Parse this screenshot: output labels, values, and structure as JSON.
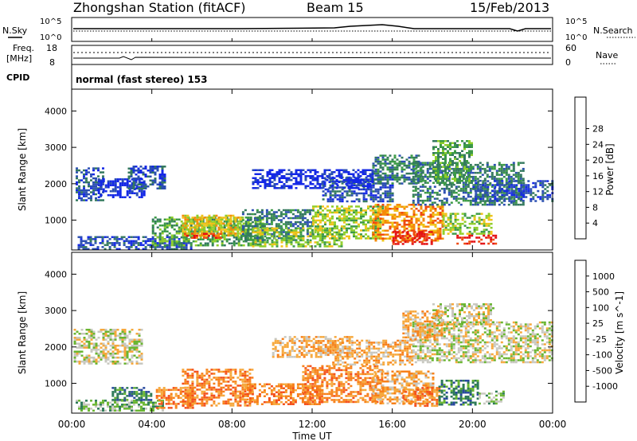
{
  "header": {
    "station": "Zhongshan Station (fitACF)",
    "beam": "Beam 15",
    "date": "15/Feb/2013"
  },
  "status_panels": {
    "nsky_label": "N.Sky",
    "nsearch_label": "N.Search",
    "scale_top": "10^5",
    "scale_bottom": "10^0",
    "freq_label_line1": "Freq.",
    "freq_label_line2": "[MHz]",
    "freq_ticks": [
      "18",
      "8"
    ],
    "nave_label": "Nave",
    "nave_ticks": [
      "60",
      "0"
    ],
    "cpid_label": "CPID",
    "cpid_text": "normal (fast stereo) 153"
  },
  "colors": {
    "power": [
      "#1428e6",
      "#2b4fb2",
      "#34795e",
      "#3c9a46",
      "#8fce2a",
      "#f0c319",
      "#f58a0a",
      "#ee4a10",
      "#e30f12"
    ],
    "velocity": [
      "#e81010",
      "#f4501c",
      "#f7801a",
      "#f6a83c",
      "#c8c8c0",
      "#6ab632",
      "#2e7a58",
      "#28489e",
      "#1c34cc"
    ]
  },
  "chart_data": [
    {
      "type": "heatmap",
      "name": "power",
      "ylabel": "Slant Range [km]",
      "xlabel": "Time UT",
      "x_ticks": [
        "00:00",
        "04:00",
        "08:00",
        "12:00",
        "16:00",
        "20:00",
        "00:00"
      ],
      "y_ticks": [
        "1000",
        "2000",
        "3000",
        "4000"
      ],
      "ylim": [
        180,
        4600
      ],
      "colorbar_label": "Power [dB]",
      "colorbar_ticks": [
        "4",
        "8",
        "12",
        "16",
        "20",
        "24",
        "28"
      ],
      "regions": [
        {
          "t0": 0.2,
          "t1": 1.6,
          "r0": 1550,
          "r1": 2450,
          "level": 1
        },
        {
          "t0": 1.3,
          "t1": 3.6,
          "r0": 1650,
          "r1": 2150,
          "level": 0
        },
        {
          "t0": 2.8,
          "t1": 4.6,
          "r0": 1850,
          "r1": 2500,
          "level": 1
        },
        {
          "t0": 0.3,
          "t1": 6.0,
          "r0": 230,
          "r1": 560,
          "level": 1
        },
        {
          "t0": 4.0,
          "t1": 9.5,
          "r0": 300,
          "r1": 1100,
          "level": 3
        },
        {
          "t0": 5.5,
          "t1": 8.5,
          "r0": 600,
          "r1": 1150,
          "level": 5
        },
        {
          "t0": 5.6,
          "t1": 7.5,
          "r0": 500,
          "r1": 650,
          "level": 7
        },
        {
          "t0": 8.5,
          "t1": 12.0,
          "r0": 450,
          "r1": 1300,
          "level": 2
        },
        {
          "t0": 9.0,
          "t1": 13.5,
          "r0": 300,
          "r1": 800,
          "level": 4
        },
        {
          "t0": 12.0,
          "t1": 15.5,
          "r0": 500,
          "r1": 1400,
          "level": 4
        },
        {
          "t0": 15.0,
          "t1": 18.5,
          "r0": 450,
          "r1": 1450,
          "level": 6
        },
        {
          "t0": 16.0,
          "t1": 18.0,
          "r0": 350,
          "r1": 700,
          "level": 8
        },
        {
          "t0": 18.5,
          "t1": 21.0,
          "r0": 600,
          "r1": 1200,
          "level": 4
        },
        {
          "t0": 19.2,
          "t1": 21.2,
          "r0": 330,
          "r1": 600,
          "level": 8
        },
        {
          "t0": 12.5,
          "t1": 16.0,
          "r0": 1500,
          "r1": 2200,
          "level": 1
        },
        {
          "t0": 15.0,
          "t1": 17.5,
          "r0": 2000,
          "r1": 2800,
          "level": 2
        },
        {
          "t0": 17.0,
          "t1": 22.5,
          "r0": 1400,
          "r1": 2600,
          "level": 2
        },
        {
          "t0": 18.0,
          "t1": 20.0,
          "r0": 2000,
          "r1": 3200,
          "level": 3
        },
        {
          "t0": 20.0,
          "t1": 24.0,
          "r0": 1500,
          "r1": 2100,
          "level": 1
        },
        {
          "t0": 9.0,
          "t1": 15.0,
          "r0": 1900,
          "r1": 2400,
          "level": 0
        }
      ]
    },
    {
      "type": "heatmap",
      "name": "velocity",
      "ylabel": "Slant Range [km]",
      "xlabel": "Time UT",
      "x_ticks": [
        "00:00",
        "04:00",
        "08:00",
        "12:00",
        "16:00",
        "20:00",
        "00:00"
      ],
      "y_ticks": [
        "1000",
        "2000",
        "3000",
        "4000"
      ],
      "ylim": [
        180,
        4600
      ],
      "colorbar_label": "Velocity [m s^-1]",
      "colorbar_ticks": [
        "-1000",
        "-500",
        "-100",
        "-25",
        "25",
        "100",
        "500",
        "1000"
      ],
      "regions": [
        {
          "t0": 0.1,
          "t1": 3.5,
          "r0": 1550,
          "r1": 2500,
          "level": 4
        },
        {
          "t0": 0.2,
          "t1": 4.5,
          "r0": 230,
          "r1": 550,
          "level": 5
        },
        {
          "t0": 2.0,
          "t1": 4.0,
          "r0": 550,
          "r1": 900,
          "level": 6
        },
        {
          "t0": 4.2,
          "t1": 6.0,
          "r0": 300,
          "r1": 900,
          "level": 2
        },
        {
          "t0": 5.5,
          "t1": 9.0,
          "r0": 400,
          "r1": 1400,
          "level": 2
        },
        {
          "t0": 8.5,
          "t1": 12.5,
          "r0": 400,
          "r1": 1000,
          "level": 2
        },
        {
          "t0": 11.5,
          "t1": 15.5,
          "r0": 500,
          "r1": 1500,
          "level": 2
        },
        {
          "t0": 15.0,
          "t1": 18.0,
          "r0": 450,
          "r1": 1350,
          "level": 3
        },
        {
          "t0": 16.5,
          "t1": 18.3,
          "r0": 400,
          "r1": 900,
          "level": 2
        },
        {
          "t0": 18.3,
          "t1": 20.3,
          "r0": 400,
          "r1": 1100,
          "level": 6
        },
        {
          "t0": 20.3,
          "t1": 21.5,
          "r0": 450,
          "r1": 800,
          "level": 5
        },
        {
          "t0": 13.0,
          "t1": 17.0,
          "r0": 1500,
          "r1": 2200,
          "level": 3
        },
        {
          "t0": 17.0,
          "t1": 24.0,
          "r0": 1600,
          "r1": 2700,
          "level": 4
        },
        {
          "t0": 18.0,
          "t1": 21.0,
          "r0": 2600,
          "r1": 3200,
          "level": 4
        },
        {
          "t0": 16.5,
          "t1": 18.5,
          "r0": 2200,
          "r1": 3000,
          "level": 3
        },
        {
          "t0": 10.0,
          "t1": 14.0,
          "r0": 1700,
          "r1": 2300,
          "level": 3
        }
      ]
    }
  ]
}
